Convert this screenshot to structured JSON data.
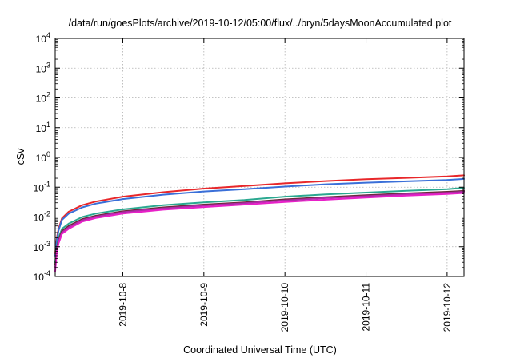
{
  "chart_data": {
    "type": "line",
    "title": "/data/run/goesPlots/archive/2019-10-12/05:00/flux/../bryn/5daysMoonAccumulated.plot",
    "xlabel": "Coordinated Universal Time (UTC)",
    "ylabel": "cSv",
    "y_scale": "log",
    "ylim": [
      0.0001,
      10000
    ],
    "xlim": [
      "2019-10-07 04:00",
      "2019-10-12 05:00"
    ],
    "grid": true,
    "legend": "none",
    "y_ticks": [
      {
        "base": "10",
        "exp": "-4"
      },
      {
        "base": "10",
        "exp": "-3"
      },
      {
        "base": "10",
        "exp": "-2"
      },
      {
        "base": "10",
        "exp": "-1"
      },
      {
        "base": "10",
        "exp": "0"
      },
      {
        "base": "10",
        "exp": "1"
      },
      {
        "base": "10",
        "exp": "2"
      },
      {
        "base": "10",
        "exp": "3"
      },
      {
        "base": "10",
        "exp": "4"
      }
    ],
    "x_ticks": [
      "2019-10-8",
      "2019-10-9",
      "2019-10-10",
      "2019-10-11",
      "2019-10-12"
    ],
    "x": [
      "2019-10-07 04:00",
      "2019-10-07 04:30",
      "2019-10-07 05:00",
      "2019-10-07 06:00",
      "2019-10-07 08:00",
      "2019-10-07 12:00",
      "2019-10-07 16:00",
      "2019-10-08 00:00",
      "2019-10-08 12:00",
      "2019-10-09 00:00",
      "2019-10-09 12:00",
      "2019-10-10 00:00",
      "2019-10-10 12:00",
      "2019-10-11 00:00",
      "2019-10-11 12:00",
      "2019-10-12 00:00",
      "2019-10-12 05:00"
    ],
    "series": [
      {
        "color": "#e8272a",
        "values": [
          0.0006,
          0.002,
          0.004,
          0.009,
          0.015,
          0.025,
          0.033,
          0.048,
          0.068,
          0.09,
          0.11,
          0.135,
          0.16,
          0.185,
          0.205,
          0.23,
          0.25
        ]
      },
      {
        "color": "#3a6fd8",
        "values": [
          0.0005,
          0.0017,
          0.0035,
          0.008,
          0.013,
          0.021,
          0.028,
          0.04,
          0.056,
          0.072,
          0.086,
          0.105,
          0.125,
          0.142,
          0.158,
          0.175,
          0.19
        ]
      },
      {
        "color": "#2aa890",
        "values": [
          0.0003,
          0.001,
          0.002,
          0.004,
          0.006,
          0.01,
          0.013,
          0.018,
          0.025,
          0.031,
          0.037,
          0.048,
          0.057,
          0.066,
          0.076,
          0.086,
          0.095
        ]
      },
      {
        "color": "#6b2a3a",
        "values": [
          0.00025,
          0.0009,
          0.0017,
          0.0034,
          0.005,
          0.0085,
          0.011,
          0.0155,
          0.021,
          0.026,
          0.031,
          0.039,
          0.046,
          0.054,
          0.062,
          0.07,
          0.075
        ]
      },
      {
        "color": "#b02aa8",
        "values": [
          0.0002,
          0.0008,
          0.0015,
          0.003,
          0.0045,
          0.0078,
          0.0102,
          0.0145,
          0.0195,
          0.024,
          0.029,
          0.036,
          0.043,
          0.05,
          0.057,
          0.065,
          0.07
        ]
      },
      {
        "color": "#e820c8",
        "values": [
          0.00015,
          0.0007,
          0.0013,
          0.0027,
          0.004,
          0.007,
          0.0092,
          0.013,
          0.0175,
          0.0215,
          0.026,
          0.032,
          0.038,
          0.045,
          0.052,
          0.059,
          0.064
        ]
      }
    ]
  }
}
